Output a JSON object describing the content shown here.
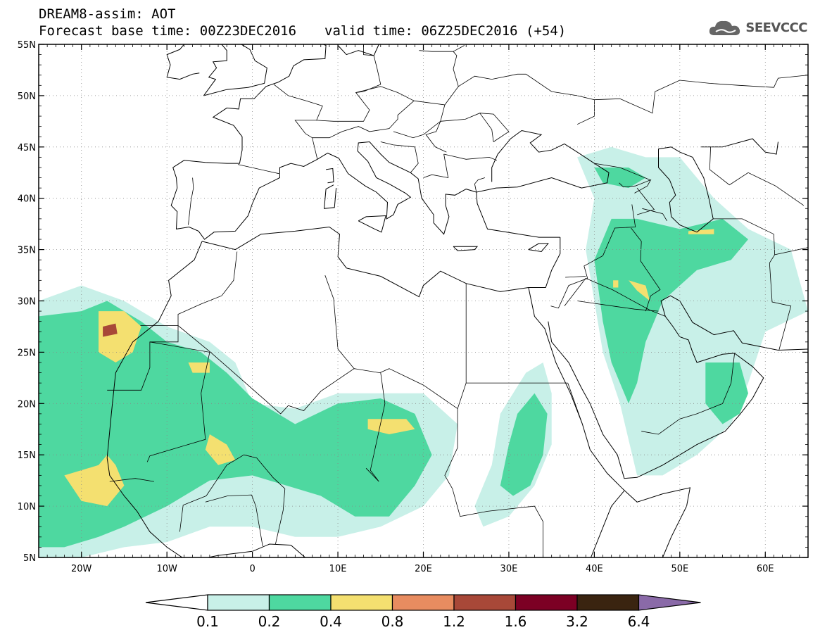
{
  "header": {
    "line1": "DREAM8-assim: AOT",
    "base_time": "Forecast base time: 00Z23DEC2016",
    "valid_time": "valid time: 06Z25DEC2016 (+54)"
  },
  "logo": {
    "text": "SEEVCCC",
    "icon": "cloud-icon"
  },
  "chart_data": {
    "type": "heatmap",
    "title": "DREAM8-assim: AOT",
    "xlim": [
      -25,
      65
    ],
    "ylim": [
      5,
      55
    ],
    "x_ticks": [
      -20,
      -10,
      0,
      10,
      20,
      30,
      40,
      50,
      60
    ],
    "x_tick_labels": [
      "20W",
      "10W",
      "0",
      "10E",
      "20E",
      "30E",
      "40E",
      "50E",
      "60E"
    ],
    "y_ticks": [
      5,
      10,
      15,
      20,
      25,
      30,
      35,
      40,
      45,
      50,
      55
    ],
    "y_tick_labels": [
      "5N",
      "10N",
      "15N",
      "20N",
      "25N",
      "30N",
      "35N",
      "40N",
      "45N",
      "50N",
      "55N"
    ],
    "grid": true,
    "colorbar": {
      "levels": [
        "0.1",
        "0.2",
        "0.4",
        "0.8",
        "1.2",
        "1.6",
        "3.2",
        "6.4"
      ],
      "colors": [
        "#c8f0e8",
        "#4ed8a0",
        "#f4e070",
        "#e88c60",
        "#a84838",
        "#7c0024",
        "#3a2410",
        "#8a6aa8"
      ]
    },
    "regions": [
      {
        "level": 0,
        "poly": [
          [
            -25,
            30
          ],
          [
            -20,
            31.5
          ],
          [
            -15,
            30
          ],
          [
            -10,
            27.5
          ],
          [
            -5,
            26
          ],
          [
            -2,
            24
          ],
          [
            0,
            20
          ],
          [
            5,
            19.5
          ],
          [
            10,
            21
          ],
          [
            15,
            21
          ],
          [
            20,
            21
          ],
          [
            24,
            18
          ],
          [
            23,
            13
          ],
          [
            20,
            10
          ],
          [
            15,
            8
          ],
          [
            10,
            7
          ],
          [
            5,
            7
          ],
          [
            0,
            8
          ],
          [
            -5,
            8
          ],
          [
            -10,
            6.5
          ],
          [
            -15,
            6
          ],
          [
            -20,
            5
          ],
          [
            -25,
            5
          ]
        ]
      },
      {
        "level": 1,
        "poly": [
          [
            -25,
            28.5
          ],
          [
            -20,
            29
          ],
          [
            -17,
            30
          ],
          [
            -13,
            28
          ],
          [
            -10,
            26
          ],
          [
            -6,
            25
          ],
          [
            -3,
            23
          ],
          [
            0,
            20.5
          ],
          [
            5,
            18
          ],
          [
            10,
            20
          ],
          [
            15,
            20.5
          ],
          [
            19,
            19
          ],
          [
            21,
            15
          ],
          [
            19,
            12
          ],
          [
            16,
            9
          ],
          [
            12,
            9
          ],
          [
            8,
            11
          ],
          [
            4,
            12
          ],
          [
            0,
            13
          ],
          [
            -5,
            12.5
          ],
          [
            -10,
            10
          ],
          [
            -15,
            8
          ],
          [
            -18,
            7
          ],
          [
            -22,
            6
          ],
          [
            -25,
            6
          ]
        ]
      },
      {
        "level": 2,
        "poly": [
          [
            -18,
            29
          ],
          [
            -15,
            29
          ],
          [
            -13,
            27.5
          ],
          [
            -14,
            25
          ],
          [
            -16,
            24
          ],
          [
            -18,
            25
          ]
        ]
      },
      {
        "level": 2,
        "poly": [
          [
            -5,
            17
          ],
          [
            -3,
            16
          ],
          [
            -2,
            14.5
          ],
          [
            -4,
            14
          ],
          [
            -5.5,
            15.5
          ]
        ]
      },
      {
        "level": 2,
        "poly": [
          [
            -22,
            13
          ],
          [
            -18,
            14
          ],
          [
            -17,
            15
          ],
          [
            -16,
            14
          ],
          [
            -15,
            12
          ],
          [
            -17,
            10
          ],
          [
            -20,
            10.5
          ]
        ]
      },
      {
        "level": 2,
        "poly": [
          [
            13.5,
            18.5
          ],
          [
            18,
            18.5
          ],
          [
            19,
            17.5
          ],
          [
            16,
            17
          ],
          [
            13.5,
            17.5
          ]
        ]
      },
      {
        "level": 2,
        "poly": [
          [
            -7.5,
            24
          ],
          [
            -5,
            24
          ],
          [
            -5,
            23
          ],
          [
            -7,
            23
          ]
        ]
      },
      {
        "level": 4,
        "poly": [
          [
            -17.5,
            27.5
          ],
          [
            -16,
            27.8
          ],
          [
            -15.8,
            26.8
          ],
          [
            -17.5,
            26.5
          ]
        ]
      },
      {
        "level": 0,
        "poly": [
          [
            26,
            10
          ],
          [
            28,
            14
          ],
          [
            29,
            19
          ],
          [
            32,
            23
          ],
          [
            34,
            24
          ],
          [
            35,
            21
          ],
          [
            35,
            16
          ],
          [
            33,
            12
          ],
          [
            30,
            9
          ],
          [
            27,
            8
          ]
        ]
      },
      {
        "level": 1,
        "poly": [
          [
            29,
            12
          ],
          [
            30,
            16
          ],
          [
            31,
            19
          ],
          [
            33,
            21
          ],
          [
            34.5,
            19
          ],
          [
            34,
            15
          ],
          [
            32.5,
            12
          ],
          [
            30.5,
            11
          ]
        ]
      },
      {
        "level": 0,
        "poly": [
          [
            38,
            44
          ],
          [
            42,
            45
          ],
          [
            46,
            44
          ],
          [
            50,
            44
          ],
          [
            54,
            40
          ],
          [
            58,
            37
          ],
          [
            63,
            35
          ],
          [
            65,
            29
          ],
          [
            60,
            27
          ],
          [
            58,
            22
          ],
          [
            56,
            18
          ],
          [
            52,
            15
          ],
          [
            48,
            13
          ],
          [
            45,
            13
          ],
          [
            43,
            20
          ],
          [
            41,
            25
          ],
          [
            40,
            30
          ],
          [
            39,
            35
          ],
          [
            40,
            40
          ]
        ]
      },
      {
        "level": 1,
        "poly": [
          [
            40,
            34
          ],
          [
            42,
            38
          ],
          [
            45,
            38
          ],
          [
            50,
            37
          ],
          [
            55,
            38
          ],
          [
            58,
            36
          ],
          [
            56,
            34
          ],
          [
            52,
            33
          ],
          [
            48,
            30
          ],
          [
            46,
            26
          ],
          [
            45,
            22
          ],
          [
            44,
            20
          ],
          [
            42,
            24
          ],
          [
            41,
            28
          ]
        ]
      },
      {
        "level": 1,
        "poly": [
          [
            40,
            43
          ],
          [
            44,
            43
          ],
          [
            46,
            42
          ],
          [
            44,
            41
          ],
          [
            41,
            41.5
          ]
        ]
      },
      {
        "level": 1,
        "poly": [
          [
            53,
            24
          ],
          [
            57,
            24
          ],
          [
            58,
            21
          ],
          [
            57,
            19
          ],
          [
            55,
            18
          ],
          [
            53,
            20
          ]
        ]
      },
      {
        "level": 2,
        "poly": [
          [
            44,
            32
          ],
          [
            46,
            31.5
          ],
          [
            46.5,
            30
          ],
          [
            45,
            31
          ]
        ]
      },
      {
        "level": 2,
        "poly": [
          [
            51,
            36.8
          ],
          [
            54,
            37
          ],
          [
            54,
            36.5
          ],
          [
            51,
            36.5
          ]
        ]
      },
      {
        "level": 2,
        "poly": [
          [
            42.2,
            32
          ],
          [
            42.8,
            32
          ],
          [
            42.8,
            31.3
          ],
          [
            42.2,
            31.3
          ]
        ]
      }
    ]
  }
}
